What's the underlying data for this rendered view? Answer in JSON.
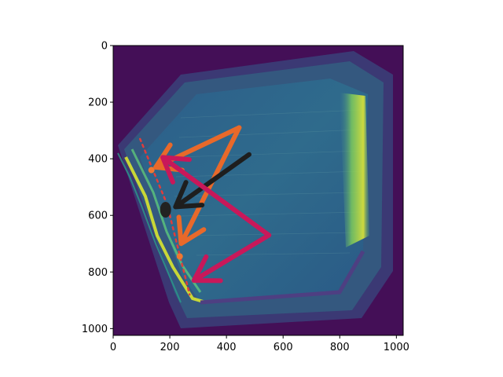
{
  "chart_data": {
    "type": "heatmap",
    "title": "",
    "xlabel": "",
    "ylabel": "",
    "xlim": [
      0,
      1024
    ],
    "ylim": [
      1024,
      0
    ],
    "x_ticks": [
      "0",
      "200",
      "400",
      "600",
      "800",
      "1000"
    ],
    "y_ticks": [
      "0",
      "200",
      "400",
      "600",
      "800",
      "1000"
    ],
    "x_tick_values": [
      0,
      200,
      400,
      600,
      800,
      1000
    ],
    "y_tick_values": [
      0,
      200,
      400,
      600,
      800,
      1000
    ],
    "colormap": "viridis",
    "image_content": "grayscale intensity image (viridis colormap) of a tilted trapezoidal chamber with a bright yellow wall on the left and a bright band on the right",
    "annotations": [
      {
        "type": "dotted-line",
        "color": "#e03c3c",
        "points": [
          [
            95,
            330
          ],
          [
            190,
            560
          ],
          [
            270,
            880
          ]
        ]
      },
      {
        "type": "point",
        "color": "#f07830",
        "x": 135,
        "y": 440
      },
      {
        "type": "point",
        "color": "#f07830",
        "x": 235,
        "y": 745
      },
      {
        "type": "blob",
        "color": "#222222",
        "x": 185,
        "y": 580
      },
      {
        "type": "arrow",
        "color": "#e8692a",
        "from": [
          445,
          290
        ],
        "to": [
          150,
          430
        ]
      },
      {
        "type": "arrow",
        "color": "#e8692a",
        "from": [
          445,
          290
        ],
        "to": [
          240,
          700
        ]
      },
      {
        "type": "arrow",
        "color": "#1e1e1e",
        "from": [
          480,
          385
        ],
        "to": [
          220,
          570
        ]
      },
      {
        "type": "arrow",
        "color": "#c8185a",
        "from": [
          550,
          670
        ],
        "to": [
          175,
          395
        ]
      },
      {
        "type": "arrow",
        "color": "#c8185a",
        "from": [
          550,
          670
        ],
        "to": [
          285,
          830
        ]
      }
    ]
  }
}
